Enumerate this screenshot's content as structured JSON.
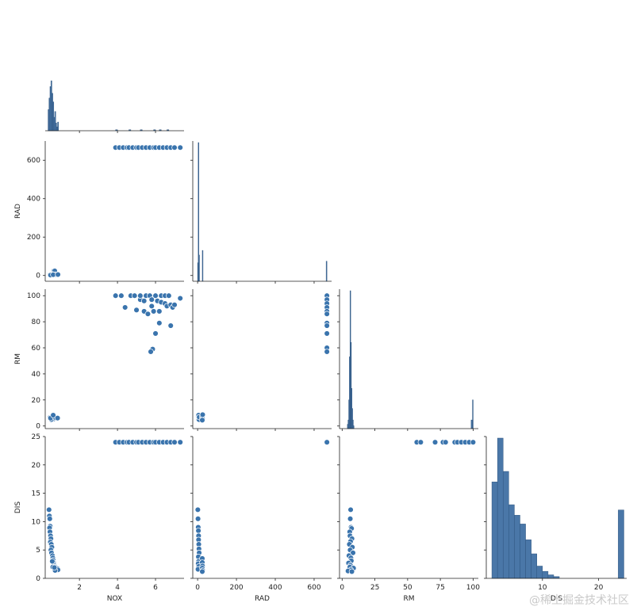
{
  "chart_data": {
    "type": "scatter",
    "variables": [
      "NOX",
      "RAD",
      "RM",
      "DIS"
    ],
    "layout": "corner-pairplot",
    "diagonal_type": "histogram",
    "color": "#3a74ad",
    "x_axes": [
      {
        "var": "NOX",
        "label": "NOX",
        "range": [
          0.2,
          7.5
        ],
        "ticks": [
          2,
          4,
          6
        ]
      },
      {
        "var": "RAD",
        "label": "RAD",
        "range": [
          -25,
          690
        ],
        "ticks": [
          0,
          200,
          400,
          600
        ]
      },
      {
        "var": "RM",
        "label": "RM",
        "range": [
          -2,
          104
        ],
        "ticks": [
          0,
          25,
          50,
          75,
          100
        ]
      },
      {
        "var": "DIS",
        "label": "DIS",
        "range": [
          0,
          25
        ],
        "ticks": [
          10,
          20
        ]
      }
    ],
    "y_axes": [
      {
        "var": "RAD",
        "label": "RAD",
        "range": [
          -30,
          700
        ],
        "ticks": [
          0,
          200,
          400,
          600
        ]
      },
      {
        "var": "RM",
        "label": "RM",
        "range": [
          -2,
          105
        ],
        "ticks": [
          0,
          20,
          40,
          60,
          80,
          100
        ]
      },
      {
        "var": "DIS",
        "label": "DIS",
        "range": [
          0,
          25
        ],
        "ticks": [
          0,
          5,
          10,
          15,
          20,
          25
        ]
      }
    ],
    "histograms": [
      {
        "var": "NOX",
        "bins": [
          {
            "x0": 0.35,
            "x1": 0.4,
            "count": 22
          },
          {
            "x0": 0.4,
            "x1": 0.45,
            "count": 34
          },
          {
            "x0": 0.45,
            "x1": 0.5,
            "count": 46
          },
          {
            "x0": 0.5,
            "x1": 0.55,
            "count": 52
          },
          {
            "x0": 0.55,
            "x1": 0.6,
            "count": 39
          },
          {
            "x0": 0.6,
            "x1": 0.65,
            "count": 30
          },
          {
            "x0": 0.65,
            "x1": 0.7,
            "count": 14
          },
          {
            "x0": 0.7,
            "x1": 0.75,
            "count": 20
          },
          {
            "x0": 0.75,
            "x1": 0.8,
            "count": 8
          },
          {
            "x0": 0.8,
            "x1": 0.85,
            "count": 4
          },
          {
            "x0": 0.85,
            "x1": 0.9,
            "count": 9
          },
          {
            "x0": 3.9,
            "x1": 4.0,
            "count": 1
          },
          {
            "x0": 4.6,
            "x1": 4.7,
            "count": 1
          },
          {
            "x0": 5.2,
            "x1": 5.3,
            "count": 1
          },
          {
            "x0": 5.9,
            "x1": 6.0,
            "count": 1
          },
          {
            "x0": 6.2,
            "x1": 6.3,
            "count": 1
          },
          {
            "x0": 6.6,
            "x1": 6.7,
            "count": 1
          }
        ]
      },
      {
        "var": "RAD",
        "bins": [
          {
            "x0": 0,
            "x1": 3,
            "count": 24
          },
          {
            "x0": 3,
            "x1": 6,
            "count": 180
          },
          {
            "x0": 6,
            "x1": 9,
            "count": 34
          },
          {
            "x0": 24,
            "x1": 27,
            "count": 40
          },
          {
            "x0": 662,
            "x1": 666,
            "count": 26
          }
        ]
      },
      {
        "var": "RM",
        "bins": [
          {
            "x0": 4.0,
            "x1": 4.5,
            "count": 3
          },
          {
            "x0": 4.5,
            "x1": 5.0,
            "count": 6
          },
          {
            "x0": 5.0,
            "x1": 5.5,
            "count": 20
          },
          {
            "x0": 5.5,
            "x1": 6.0,
            "count": 50
          },
          {
            "x0": 6.0,
            "x1": 6.5,
            "count": 96
          },
          {
            "x0": 6.5,
            "x1": 7.0,
            "count": 60
          },
          {
            "x0": 7.0,
            "x1": 7.5,
            "count": 28
          },
          {
            "x0": 7.5,
            "x1": 8.0,
            "count": 14
          },
          {
            "x0": 8.0,
            "x1": 8.5,
            "count": 6
          },
          {
            "x0": 8.5,
            "x1": 9.0,
            "count": 2
          },
          {
            "x0": 98.5,
            "x1": 99.5,
            "count": 6
          },
          {
            "x0": 99.5,
            "x1": 100.0,
            "count": 20
          }
        ]
      },
      {
        "var": "DIS",
        "bins": [
          {
            "x0": 1.0,
            "x1": 2.0,
            "count": 55
          },
          {
            "x0": 2.0,
            "x1": 3.0,
            "count": 80
          },
          {
            "x0": 3.0,
            "x1": 4.0,
            "count": 61
          },
          {
            "x0": 4.0,
            "x1": 5.0,
            "count": 42
          },
          {
            "x0": 5.0,
            "x1": 6.0,
            "count": 36
          },
          {
            "x0": 6.0,
            "x1": 7.0,
            "count": 31
          },
          {
            "x0": 7.0,
            "x1": 8.0,
            "count": 22
          },
          {
            "x0": 8.0,
            "x1": 9.0,
            "count": 14
          },
          {
            "x0": 9.0,
            "x1": 10.0,
            "count": 7
          },
          {
            "x0": 10.0,
            "x1": 11.0,
            "count": 4
          },
          {
            "x0": 11.0,
            "x1": 12.0,
            "count": 2
          },
          {
            "x0": 12.0,
            "x1": 13.0,
            "count": 1
          },
          {
            "x0": 23.5,
            "x1": 24.5,
            "count": 39
          }
        ]
      }
    ],
    "scatter_panels": [
      {
        "x": "NOX",
        "y": "RAD",
        "points": [
          [
            0.45,
            4
          ],
          [
            0.5,
            5
          ],
          [
            0.55,
            3
          ],
          [
            0.6,
            8
          ],
          [
            0.65,
            24
          ],
          [
            0.7,
            24
          ],
          [
            0.52,
            1
          ],
          [
            0.58,
            6
          ],
          [
            0.48,
            2
          ],
          [
            0.74,
            5
          ],
          [
            0.62,
            4
          ],
          [
            0.87,
            5
          ],
          [
            3.9,
            666
          ],
          [
            4.1,
            666
          ],
          [
            4.3,
            666
          ],
          [
            4.5,
            666
          ],
          [
            4.6,
            666
          ],
          [
            4.8,
            666
          ],
          [
            5.0,
            666
          ],
          [
            5.1,
            666
          ],
          [
            5.3,
            666
          ],
          [
            5.5,
            666
          ],
          [
            5.7,
            666
          ],
          [
            5.9,
            666
          ],
          [
            6.0,
            666
          ],
          [
            6.2,
            666
          ],
          [
            6.4,
            666
          ],
          [
            6.6,
            666
          ],
          [
            6.8,
            666
          ],
          [
            7.0,
            666
          ],
          [
            7.3,
            666
          ]
        ]
      },
      {
        "x": "NOX",
        "y": "RM",
        "points": [
          [
            0.45,
            6.5
          ],
          [
            0.5,
            6.2
          ],
          [
            0.55,
            5.8
          ],
          [
            0.6,
            7.0
          ],
          [
            0.65,
            5.5
          ],
          [
            0.7,
            6.8
          ],
          [
            0.52,
            4.9
          ],
          [
            0.58,
            7.8
          ],
          [
            0.48,
            6.0
          ],
          [
            0.74,
            6.4
          ],
          [
            0.62,
            8.3
          ],
          [
            0.85,
            6.1
          ],
          [
            3.9,
            100
          ],
          [
            4.2,
            100
          ],
          [
            4.4,
            91
          ],
          [
            4.7,
            100
          ],
          [
            4.9,
            100
          ],
          [
            5.0,
            89
          ],
          [
            5.2,
            97
          ],
          [
            5.2,
            100
          ],
          [
            5.4,
            88
          ],
          [
            5.4,
            96
          ],
          [
            5.5,
            100
          ],
          [
            5.6,
            86
          ],
          [
            5.7,
            100
          ],
          [
            5.8,
            97
          ],
          [
            5.8,
            92
          ],
          [
            5.9,
            88
          ],
          [
            6.0,
            100
          ],
          [
            6.0,
            71
          ],
          [
            5.85,
            59
          ],
          [
            5.75,
            57
          ],
          [
            6.1,
            96
          ],
          [
            6.2,
            88
          ],
          [
            6.2,
            79
          ],
          [
            6.3,
            100
          ],
          [
            6.3,
            95
          ],
          [
            6.5,
            100
          ],
          [
            6.5,
            94
          ],
          [
            6.6,
            92
          ],
          [
            6.7,
            100
          ],
          [
            6.8,
            93
          ],
          [
            6.9,
            91
          ],
          [
            6.8,
            77
          ],
          [
            7.0,
            93
          ],
          [
            7.3,
            98
          ]
        ]
      },
      {
        "x": "NOX",
        "y": "DIS",
        "points": [
          [
            0.4,
            12.1
          ],
          [
            0.42,
            11.0
          ],
          [
            0.44,
            10.5
          ],
          [
            0.46,
            9.2
          ],
          [
            0.43,
            8.9
          ],
          [
            0.45,
            8.2
          ],
          [
            0.48,
            7.5
          ],
          [
            0.5,
            7.0
          ],
          [
            0.47,
            6.4
          ],
          [
            0.52,
            6.0
          ],
          [
            0.55,
            5.5
          ],
          [
            0.5,
            5.0
          ],
          [
            0.53,
            4.5
          ],
          [
            0.58,
            4.0
          ],
          [
            0.6,
            3.6
          ],
          [
            0.62,
            3.2
          ],
          [
            0.64,
            2.8
          ],
          [
            0.66,
            2.5
          ],
          [
            0.7,
            2.2
          ],
          [
            0.74,
            2.0
          ],
          [
            0.78,
            1.8
          ],
          [
            0.8,
            1.6
          ],
          [
            0.85,
            1.7
          ],
          [
            0.87,
            1.5
          ],
          [
            0.72,
            1.4
          ],
          [
            0.57,
            3.0
          ],
          [
            0.6,
            2.0
          ],
          [
            0.68,
            1.9
          ],
          [
            3.9,
            24
          ],
          [
            4.1,
            24
          ],
          [
            4.3,
            24
          ],
          [
            4.5,
            24
          ],
          [
            4.6,
            24
          ],
          [
            4.8,
            24
          ],
          [
            5.0,
            24
          ],
          [
            5.1,
            24
          ],
          [
            5.3,
            24
          ],
          [
            5.5,
            24
          ],
          [
            5.7,
            24
          ],
          [
            5.9,
            24
          ],
          [
            6.0,
            24
          ],
          [
            6.2,
            24
          ],
          [
            6.4,
            24
          ],
          [
            6.6,
            24
          ],
          [
            6.8,
            24
          ],
          [
            7.0,
            24
          ],
          [
            7.3,
            24
          ]
        ]
      },
      {
        "x": "RAD",
        "y": "RM",
        "points": [
          [
            1,
            6.5
          ],
          [
            2,
            5.8
          ],
          [
            3,
            7.2
          ],
          [
            4,
            6.0
          ],
          [
            5,
            6.4
          ],
          [
            5,
            8.3
          ],
          [
            6,
            5.2
          ],
          [
            7,
            4.9
          ],
          [
            8,
            6.8
          ],
          [
            24,
            6.1
          ],
          [
            24,
            7.5
          ],
          [
            25,
            5.6
          ],
          [
            24,
            4.5
          ],
          [
            26,
            8.7
          ],
          [
            666,
            100
          ],
          [
            666,
            97
          ],
          [
            666,
            94
          ],
          [
            666,
            91
          ],
          [
            666,
            88
          ],
          [
            666,
            86
          ],
          [
            666,
            79
          ],
          [
            666,
            77
          ],
          [
            666,
            71
          ],
          [
            666,
            60
          ],
          [
            666,
            57
          ]
        ]
      },
      {
        "x": "RAD",
        "y": "DIS",
        "points": [
          [
            1,
            12.1
          ],
          [
            2,
            10.5
          ],
          [
            3,
            9.0
          ],
          [
            4,
            8.4
          ],
          [
            5,
            7.5
          ],
          [
            5,
            6.8
          ],
          [
            6,
            6.0
          ],
          [
            7,
            5.2
          ],
          [
            8,
            4.5
          ],
          [
            4,
            3.8
          ],
          [
            5,
            3.0
          ],
          [
            3,
            2.6
          ],
          [
            6,
            2.1
          ],
          [
            2,
            1.6
          ],
          [
            24,
            3.5
          ],
          [
            24,
            2.8
          ],
          [
            25,
            2.2
          ],
          [
            24,
            1.8
          ],
          [
            26,
            1.4
          ],
          [
            24,
            1.2
          ],
          [
            666,
            24
          ]
        ]
      },
      {
        "x": "RM",
        "y": "DIS",
        "points": [
          [
            6.5,
            12.1
          ],
          [
            6.2,
            10.5
          ],
          [
            6.8,
            9.0
          ],
          [
            7.2,
            8.8
          ],
          [
            5.8,
            8.2
          ],
          [
            6.0,
            7.5
          ],
          [
            7.5,
            7.0
          ],
          [
            6.4,
            6.5
          ],
          [
            5.5,
            6.0
          ],
          [
            7.8,
            5.5
          ],
          [
            6.1,
            5.0
          ],
          [
            8.3,
            4.5
          ],
          [
            5.2,
            4.0
          ],
          [
            6.7,
            3.6
          ],
          [
            7.0,
            3.1
          ],
          [
            4.9,
            2.7
          ],
          [
            6.3,
            2.3
          ],
          [
            5.9,
            2.0
          ],
          [
            8.7,
            1.8
          ],
          [
            6.6,
            1.5
          ],
          [
            4.5,
            1.3
          ],
          [
            7.4,
            1.2
          ],
          [
            57,
            24
          ],
          [
            60,
            24
          ],
          [
            71,
            24
          ],
          [
            77,
            24
          ],
          [
            79,
            24
          ],
          [
            86,
            24
          ],
          [
            88,
            24
          ],
          [
            91,
            24
          ],
          [
            94,
            24
          ],
          [
            97,
            24
          ],
          [
            100,
            24
          ]
        ]
      }
    ]
  },
  "watermark": "@稀土掘金技术社区"
}
